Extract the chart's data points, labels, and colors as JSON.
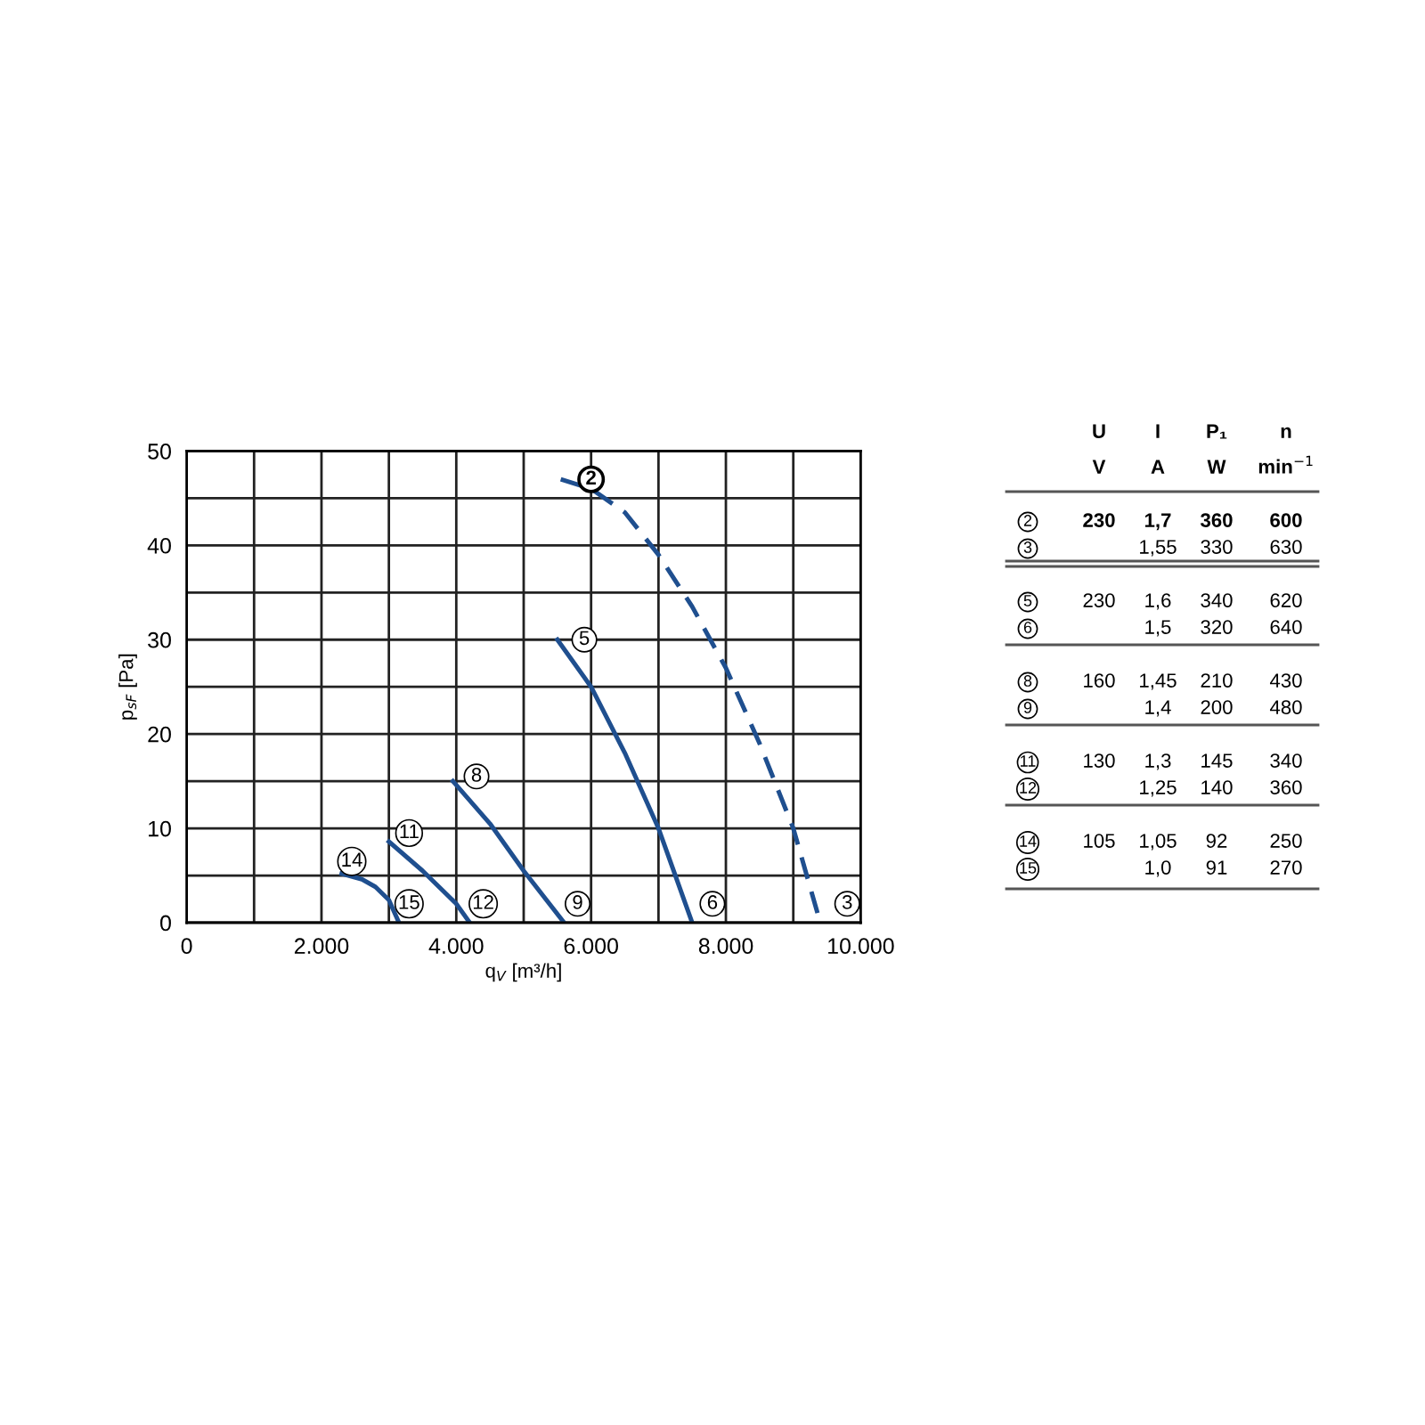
{
  "chart_data": [
    {
      "type": "line",
      "xlabel": "q$_{V}$ [m³/h]",
      "ylabel": "p$_{sF}$ [Pa]",
      "xlim": [
        0,
        10000
      ],
      "ylim": [
        0,
        50
      ],
      "xticks": [
        0,
        {
          "value": 1000,
          "label": null
        },
        {
          "value": 2000,
          "label": "2.000"
        },
        {
          "value": 3000,
          "label": null
        },
        {
          "value": 4000,
          "label": "4.000"
        },
        {
          "value": 5000,
          "label": null
        },
        {
          "value": 6000,
          "label": "6.000"
        },
        {
          "value": 7000,
          "label": null
        },
        {
          "value": 8000,
          "label": "8.000"
        },
        {
          "value": 9000,
          "label": null
        },
        {
          "value": 10000,
          "label": "10.000"
        }
      ],
      "yticks": [
        0,
        {
          "value": 5,
          "label": null
        },
        10,
        {
          "value": 15,
          "label": null
        },
        20,
        {
          "value": 25,
          "label": null
        },
        30,
        {
          "value": 35,
          "label": null
        },
        40,
        {
          "value": 45,
          "label": null
        },
        50
      ],
      "grid": true,
      "marker": "none",
      "series": [
        {
          "color": "#1f4f8f",
          "line_style": "dashed",
          "x": [
            5550,
            6000,
            6500,
            7000,
            7500,
            8000,
            8500,
            9000,
            9400
          ],
          "values": [
            47,
            46,
            43.5,
            39,
            33.5,
            27,
            19,
            10,
            0
          ]
        },
        {
          "color": "#1f4f8f",
          "line_style": "solid",
          "x": [
            5500,
            6000,
            6500,
            7000,
            7500
          ],
          "values": [
            30,
            25,
            18,
            10,
            0
          ]
        },
        {
          "color": "#1f4f8f",
          "line_style": "solid",
          "x": [
            3950,
            4500,
            5000,
            5600
          ],
          "values": [
            15,
            10.5,
            5.5,
            0
          ]
        },
        {
          "color": "#1f4f8f",
          "line_style": "solid",
          "x": [
            3000,
            3500,
            4000,
            4200
          ],
          "values": [
            8.6,
            5.5,
            2,
            0
          ]
        },
        {
          "color": "#1f4f8f",
          "line_style": "solid",
          "x": [
            2300,
            2600,
            2800,
            3000,
            3150
          ],
          "values": [
            5.2,
            4.6,
            3.8,
            2.4,
            0
          ]
        }
      ],
      "annotations": [
        {
          "text": "2",
          "x": 6000,
          "y": 47
        },
        {
          "text": "3",
          "x": 9800,
          "y": 2
        },
        {
          "text": "5",
          "x": 5900,
          "y": 30
        },
        {
          "text": "6",
          "x": 7800,
          "y": 2
        },
        {
          "text": "8",
          "x": 4300,
          "y": 15.5
        },
        {
          "text": "9",
          "x": 5800,
          "y": 2
        },
        {
          "text": "11",
          "x": 3300,
          "y": 9.5
        },
        {
          "text": "12",
          "x": 4400,
          "y": 2
        },
        {
          "text": "14",
          "x": 2450,
          "y": 6.5
        },
        {
          "text": "15",
          "x": 3300,
          "y": 2
        }
      ]
    },
    {
      "type": "other",
      "categories": [
        "U",
        "I",
        "P₁",
        "n"
      ],
      "y_categories": [
        null,
        "2",
        "3",
        "5",
        "6",
        "8",
        "9",
        "11",
        "12",
        "14",
        "15"
      ],
      "cell_labels": [
        [
          "V",
          "A",
          "W",
          "min$^{−1}$"
        ],
        [
          "230",
          "1,7",
          "360",
          "600"
        ],
        [
          null,
          "1,55",
          "330",
          "630"
        ],
        [
          "230",
          "1,6",
          "340",
          "620"
        ],
        [
          null,
          "1,5",
          "320",
          "640"
        ],
        [
          "160",
          "1,45",
          "210",
          "430"
        ],
        [
          null,
          "1,4",
          "200",
          "480"
        ],
        [
          "130",
          "1,3",
          "145",
          "340"
        ],
        [
          null,
          "1,25",
          "140",
          "360"
        ],
        [
          "105",
          "1,05",
          "92",
          "250"
        ],
        [
          null,
          "1,0",
          "91",
          "270"
        ]
      ]
    }
  ]
}
